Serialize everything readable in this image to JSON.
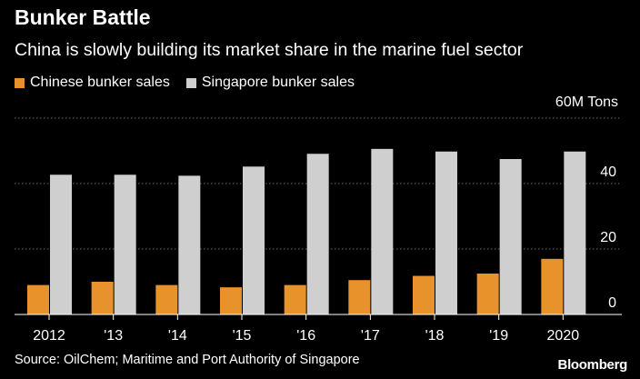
{
  "title": "Bunker Battle",
  "subtitle": "China is slowly building its market share in the marine fuel sector",
  "legend": [
    {
      "label": "Chinese bunker sales",
      "color": "#e8922b"
    },
    {
      "label": "Singapore bunker sales",
      "color": "#cfcfcf"
    }
  ],
  "unit_label": "60M Tons",
  "source": "Source: OilChem; Maritime and Port Authority of Singapore",
  "brand": "Bloomberg",
  "chart_data": {
    "type": "bar",
    "categories": [
      "2012",
      "'13",
      "'14",
      "'15",
      "'16",
      "'17",
      "'18",
      "'19",
      "2020"
    ],
    "series": [
      {
        "name": "Chinese bunker sales",
        "color": "#e8922b",
        "values": [
          9,
          10,
          9,
          8.3,
          9,
          10.5,
          11.8,
          12.5,
          17
        ]
      },
      {
        "name": "Singapore bunker sales",
        "color": "#cfcfcf",
        "values": [
          42.7,
          42.7,
          42.4,
          45.2,
          49.1,
          50.6,
          49.8,
          47.5,
          49.8
        ]
      }
    ],
    "ylim": [
      0,
      60
    ],
    "yticks": [
      0,
      20,
      40,
      60
    ],
    "ytick_labels": [
      "0",
      "20",
      "40",
      ""
    ],
    "y_axis_side": "right",
    "grid": "horizontal dotted"
  }
}
